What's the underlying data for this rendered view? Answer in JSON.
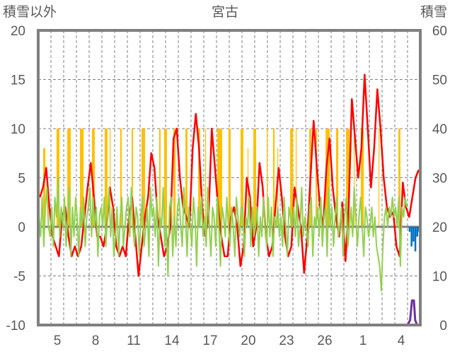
{
  "chart_data": {
    "type": "line",
    "title": "宮古",
    "ylabel_left": "積雪以外",
    "ylabel_right": "積雪",
    "ylim_left": [
      -10,
      20
    ],
    "ylim_right": [
      0,
      60
    ],
    "left_ticks": [
      "20",
      "15",
      "10",
      "5",
      "0",
      "-5",
      "-10"
    ],
    "right_ticks": [
      "60",
      "50",
      "40",
      "30",
      "20",
      "10",
      "0"
    ],
    "x_days": 30,
    "x_tick_labels": [
      {
        "day_index": 1,
        "label": "5"
      },
      {
        "day_index": 4,
        "label": "8"
      },
      {
        "day_index": 7,
        "label": "11"
      },
      {
        "day_index": 10,
        "label": "14"
      },
      {
        "day_index": 13,
        "label": "17"
      },
      {
        "day_index": 16,
        "label": "20"
      },
      {
        "day_index": 19,
        "label": "23"
      },
      {
        "day_index": 22,
        "label": "26"
      },
      {
        "day_index": 25,
        "label": "1"
      },
      {
        "day_index": 28,
        "label": "4"
      }
    ],
    "grid": true,
    "colors": {
      "precip": "#FFC000",
      "temp": "#FF0000",
      "other": "#92D050",
      "blue": "#0070C0",
      "snow": "#7030A0",
      "frame": "#808080"
    },
    "precip_bars": [
      [
        0.39,
        0.56,
        8
      ],
      [
        1.44,
        1.67,
        10
      ],
      [
        2.28,
        2.56,
        10
      ],
      [
        3.28,
        3.56,
        10
      ],
      [
        4.22,
        4.44,
        10
      ],
      [
        5.22,
        5.44,
        10
      ],
      [
        5.61,
        5.67,
        10
      ],
      [
        6.44,
        6.56,
        10
      ],
      [
        7.33,
        7.44,
        10
      ],
      [
        8.11,
        8.39,
        10
      ],
      [
        9.5,
        9.61,
        10
      ],
      [
        9.89,
        10.11,
        10
      ],
      [
        10.61,
        10.78,
        10
      ],
      [
        11.56,
        11.72,
        10
      ],
      [
        12.56,
        12.72,
        10
      ],
      [
        13.11,
        13.17,
        10
      ],
      [
        14.06,
        14.44,
        10
      ],
      [
        14.94,
        15.11,
        10
      ],
      [
        15.89,
        16.11,
        10
      ],
      [
        16.44,
        16.5,
        8
      ],
      [
        16.89,
        17.11,
        10
      ],
      [
        17.94,
        18.0,
        10
      ],
      [
        18.44,
        18.56,
        10
      ],
      [
        18.78,
        18.83,
        8
      ],
      [
        19.78,
        20.0,
        10
      ],
      [
        20.22,
        20.28,
        10
      ],
      [
        21.28,
        21.44,
        10
      ],
      [
        21.78,
        21.89,
        10
      ],
      [
        22.56,
        22.89,
        10
      ],
      [
        23.39,
        23.56,
        10
      ],
      [
        24.17,
        24.44,
        10
      ],
      [
        24.78,
        24.83,
        10
      ],
      [
        25.33,
        25.56,
        10
      ],
      [
        26.72,
        26.78,
        10
      ],
      [
        28.28,
        28.44,
        10
      ]
    ],
    "temp_6h": [
      3,
      4,
      6,
      2,
      -1,
      -2,
      -3,
      1,
      2,
      -1,
      -3,
      -2,
      -3,
      -2,
      1,
      4,
      6.5,
      3,
      -1,
      -1,
      -2,
      0,
      4,
      2,
      -2,
      -3,
      -2,
      -3,
      1,
      3,
      -1,
      -5,
      -2,
      1,
      3,
      7.5,
      6,
      1,
      -1,
      -3,
      -2,
      0,
      9,
      10,
      5,
      2,
      1,
      0,
      8,
      11.5,
      8,
      2,
      -1,
      1,
      10,
      6,
      2,
      -1,
      -3,
      -3,
      1,
      2,
      0,
      -4,
      -2,
      5,
      3,
      -2,
      0,
      6.5,
      4,
      -1,
      -3,
      -2,
      2,
      6,
      3,
      -1,
      -3,
      -2,
      4,
      2,
      0,
      -4.7,
      -1,
      5,
      10.8,
      6,
      2,
      0,
      6,
      9,
      4,
      1,
      -1,
      2.5,
      -3.5,
      2,
      13,
      9,
      5,
      8,
      15.5,
      10,
      4,
      8,
      14,
      10,
      5,
      2,
      1,
      1.5,
      -2,
      -3,
      4.5,
      2,
      1,
      3,
      5,
      5.8
    ],
    "other_3h": [
      1,
      -1,
      3,
      -2,
      2,
      4,
      0,
      -1,
      2,
      -2,
      3,
      1,
      5,
      -1,
      2,
      0,
      3,
      -2,
      1,
      4,
      -3,
      2,
      -1,
      3,
      1,
      -3,
      2,
      0,
      3,
      -2,
      1,
      2,
      4,
      -1,
      3,
      0,
      2,
      -3,
      1,
      2,
      0,
      3,
      -2,
      1,
      4,
      -1,
      2,
      -3,
      -1,
      2,
      -3,
      1,
      3,
      -2,
      0,
      2,
      3,
      -1,
      4,
      0,
      -2,
      2,
      1,
      -3,
      1,
      3,
      -2,
      0,
      2,
      -3,
      4,
      1,
      2,
      -1,
      3,
      -4,
      1,
      0,
      4,
      -2,
      0,
      -5,
      2,
      3,
      -3,
      1,
      -2,
      2,
      3,
      0,
      -2,
      4,
      1,
      -3,
      2,
      0,
      -2,
      3,
      1,
      -4,
      2,
      0,
      3,
      -1,
      1,
      -2,
      4,
      0,
      -3,
      2,
      1,
      -2,
      3,
      0,
      -4,
      2,
      1,
      -1,
      3,
      0,
      -2,
      2,
      0,
      -3,
      3,
      1,
      -1,
      2,
      2,
      -3,
      1,
      0,
      3,
      -2,
      2,
      -1,
      0,
      2,
      -3,
      1,
      -1,
      3,
      0,
      -2,
      3,
      -1,
      2,
      -3,
      1,
      0,
      2,
      -1,
      1,
      -2,
      3,
      0,
      -3,
      2,
      1,
      0,
      2,
      -1,
      3,
      -2,
      0,
      4,
      -1,
      1,
      0,
      -2,
      2,
      3,
      -3,
      1,
      0,
      2,
      -1,
      3,
      -2,
      1,
      2,
      -3,
      4,
      0,
      2,
      -2,
      1,
      3,
      -1,
      0,
      2,
      -3,
      1,
      3,
      -2,
      0,
      2,
      -1,
      4,
      1,
      -2,
      1,
      3,
      0,
      -3,
      2,
      1,
      -1,
      0,
      2,
      -1,
      1,
      -2,
      -3,
      -4,
      -6.5,
      -2,
      1,
      2,
      0,
      2,
      1,
      3,
      1,
      2,
      0,
      3,
      -4,
      2,
      1,
      3,
      2
    ],
    "blue_points": [
      [
        29.15,
        -0.5
      ],
      [
        29.3,
        -2
      ],
      [
        29.45,
        -1.5
      ],
      [
        29.6,
        -2.5
      ],
      [
        29.75,
        -1
      ],
      [
        29.9,
        -0.5
      ]
    ],
    "snow_points": [
      [
        0,
        0
      ],
      [
        29.0,
        0
      ],
      [
        29.2,
        1
      ],
      [
        29.35,
        5
      ],
      [
        29.5,
        5
      ],
      [
        29.6,
        1
      ],
      [
        29.75,
        0
      ],
      [
        30,
        0
      ]
    ]
  }
}
